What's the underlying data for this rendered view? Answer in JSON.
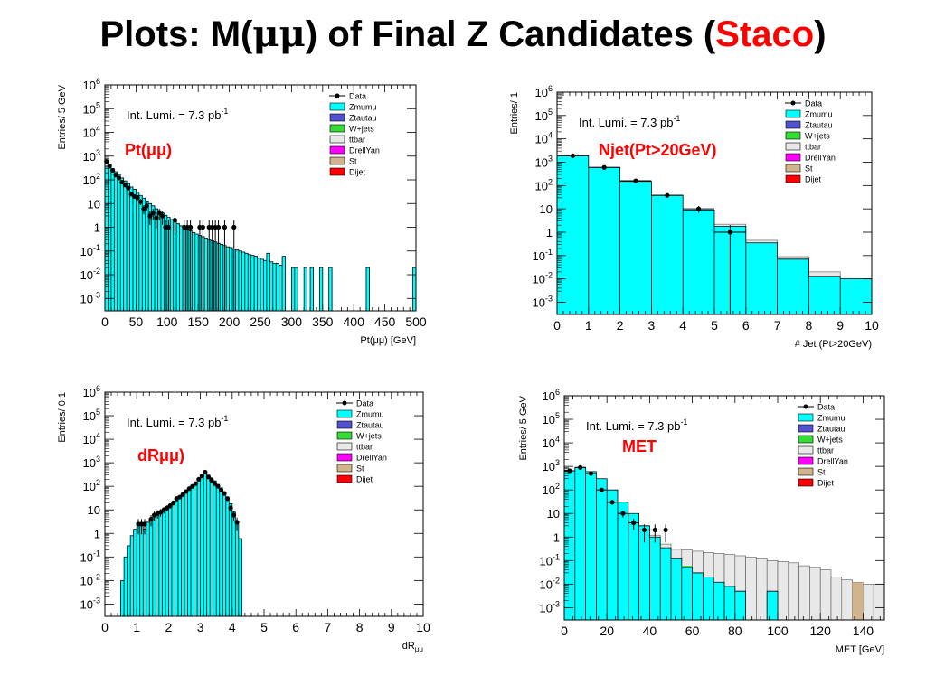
{
  "slide": {
    "title_prefix": "Plots:  M(",
    "mumu": "μμ",
    "title_middle": ") of Final Z Candidates (",
    "title_accent": "Staco",
    "title_suffix": ")",
    "accent_color": "#ff0000"
  },
  "legend_style": {
    "Data": {
      "kind": "marker",
      "color": "#000000"
    },
    "Zmumu": {
      "color": "#00ffff"
    },
    "Ztautau": {
      "color": "#5050d0"
    },
    "W+jets": {
      "color": "#33dd33"
    },
    "ttbar": {
      "color": "#e8e8e8"
    },
    "DrellYan": {
      "color": "#ff00ff"
    },
    "St": {
      "color": "#d2b48c"
    },
    "Dijet": {
      "color": "#ff0000"
    }
  },
  "chart_data": [
    {
      "type": "histogram",
      "label": "Pt(μμ)",
      "annotation": "Int. Lumi. = 7.3 pb",
      "annotation_sup": "-1",
      "xlabel": "Pt(μμ) [GeV]",
      "ylabel": "Entries/ 5 GeV",
      "xlim": [
        0,
        500
      ],
      "ylim": [
        0.0003,
        1000000
      ],
      "y_scale": "log",
      "x_ticks": [
        0,
        50,
        100,
        150,
        200,
        250,
        300,
        350,
        400,
        450,
        500
      ],
      "y_tick_exponents": [
        -3,
        -2,
        -1,
        0,
        1,
        2,
        3,
        4,
        5,
        6
      ],
      "legend": [
        "Data",
        "Zmumu",
        "Ztautau",
        "W+jets",
        "ttbar",
        "DrellYan",
        "St",
        "Dijet"
      ],
      "legend_position": "top-right",
      "bin_width": 5,
      "mc_bins": [
        [
          0,
          350
        ],
        [
          5,
          420
        ],
        [
          10,
          300
        ],
        [
          15,
          220
        ],
        [
          20,
          170
        ],
        [
          25,
          120
        ],
        [
          30,
          90
        ],
        [
          35,
          70
        ],
        [
          40,
          50
        ],
        [
          45,
          40
        ],
        [
          50,
          30
        ],
        [
          55,
          22
        ],
        [
          60,
          17
        ],
        [
          65,
          13
        ],
        [
          70,
          10
        ],
        [
          75,
          8
        ],
        [
          80,
          6
        ],
        [
          85,
          5
        ],
        [
          90,
          4
        ],
        [
          95,
          3.2
        ],
        [
          100,
          2.6
        ],
        [
          105,
          2.1
        ],
        [
          110,
          1.7
        ],
        [
          115,
          1.4
        ],
        [
          120,
          1.15
        ],
        [
          125,
          0.95
        ],
        [
          130,
          0.8
        ],
        [
          135,
          0.7
        ],
        [
          140,
          0.6
        ],
        [
          145,
          0.52
        ],
        [
          150,
          0.45
        ],
        [
          155,
          0.4
        ],
        [
          160,
          0.35
        ],
        [
          165,
          0.3
        ],
        [
          170,
          0.27
        ],
        [
          175,
          0.24
        ],
        [
          180,
          0.21
        ],
        [
          185,
          0.19
        ],
        [
          190,
          0.17
        ],
        [
          195,
          0.15
        ],
        [
          200,
          0.14
        ],
        [
          205,
          0.12
        ],
        [
          210,
          0.11
        ],
        [
          215,
          0.1
        ],
        [
          220,
          0.09
        ],
        [
          225,
          0.08
        ],
        [
          230,
          0.07
        ],
        [
          235,
          0.065
        ],
        [
          240,
          0.06
        ],
        [
          245,
          0.05
        ],
        [
          250,
          0.045
        ],
        [
          255,
          0.04
        ],
        [
          260,
          0.08
        ],
        [
          265,
          0.035
        ],
        [
          270,
          0.03
        ],
        [
          275,
          0.03
        ],
        [
          280,
          0.025
        ],
        [
          285,
          0.06
        ],
        [
          300,
          0.02
        ],
        [
          305,
          0.02
        ],
        [
          320,
          0.02
        ],
        [
          330,
          0.02
        ],
        [
          345,
          0.02
        ],
        [
          360,
          0.02
        ],
        [
          420,
          0.02
        ],
        [
          495,
          0.02
        ]
      ],
      "data_points": [
        [
          2.5,
          600
        ],
        [
          7.5,
          380
        ],
        [
          12.5,
          250
        ],
        [
          17.5,
          160
        ],
        [
          22.5,
          120
        ],
        [
          27.5,
          80
        ],
        [
          32.5,
          60
        ],
        [
          37.5,
          45
        ],
        [
          42.5,
          25
        ],
        [
          47.5,
          20
        ],
        [
          52.5,
          18
        ],
        [
          57.5,
          12
        ],
        [
          62.5,
          6
        ],
        [
          67.5,
          8
        ],
        [
          72.5,
          3
        ],
        [
          77.5,
          4
        ],
        [
          82.5,
          2.5
        ],
        [
          87.5,
          4
        ],
        [
          92.5,
          3
        ],
        [
          97.5,
          1
        ],
        [
          102.5,
          1
        ],
        [
          112.5,
          2
        ],
        [
          127.5,
          1
        ],
        [
          132.5,
          1
        ],
        [
          137.5,
          1
        ],
        [
          152.5,
          1
        ],
        [
          157.5,
          1
        ],
        [
          167.5,
          1
        ],
        [
          172.5,
          1
        ],
        [
          177.5,
          1
        ],
        [
          182.5,
          1
        ],
        [
          192.5,
          1
        ],
        [
          207.5,
          1
        ]
      ]
    },
    {
      "type": "histogram",
      "label": "Njet(Pt>20GeV)",
      "annotation": "Int. Lumi. = 7.3 pb",
      "annotation_sup": "-1",
      "xlabel": "# Jet (Pt>20GeV)",
      "ylabel": "Entries/ 1",
      "xlim": [
        0,
        10
      ],
      "ylim": [
        0.0003,
        1000000
      ],
      "y_scale": "log",
      "x_ticks": [
        0,
        1,
        2,
        3,
        4,
        5,
        6,
        7,
        8,
        9,
        10
      ],
      "y_tick_exponents": [
        -3,
        -2,
        -1,
        0,
        1,
        2,
        3,
        4,
        5,
        6
      ],
      "legend": [
        "Data",
        "Zmumu",
        "Ztautau",
        "W+jets",
        "ttbar",
        "DrellYan",
        "St",
        "Dijet"
      ],
      "legend_position": "top-right",
      "bin_width": 1,
      "mc_bins": [
        [
          0,
          1900
        ],
        [
          1,
          600
        ],
        [
          2,
          150
        ],
        [
          3,
          38
        ],
        [
          4,
          9
        ],
        [
          5,
          1.8
        ],
        [
          6,
          0.35
        ],
        [
          7,
          0.07
        ],
        [
          8,
          0.013
        ],
        [
          9,
          0.01
        ]
      ],
      "ttbar_bins": [
        [
          5,
          2.2
        ],
        [
          6,
          0.45
        ],
        [
          7,
          0.09
        ],
        [
          8,
          0.02
        ],
        [
          9,
          0.01
        ]
      ],
      "st_bins": [
        [
          9,
          0.01
        ]
      ],
      "data_points": [
        [
          0.5,
          1900
        ],
        [
          1.5,
          600
        ],
        [
          2.5,
          160
        ],
        [
          3.5,
          38
        ],
        [
          4.5,
          10
        ],
        [
          5.5,
          1
        ]
      ]
    },
    {
      "type": "histogram",
      "label": "dRμμ)",
      "annotation": "Int. Lumi. = 7.3 pb",
      "annotation_sup": "-1",
      "xlabel": "dR",
      "xlabel_sub": "μμ",
      "ylabel": "Entries/ 0.1",
      "xlim": [
        0,
        10
      ],
      "ylim": [
        0.0003,
        1000000
      ],
      "y_scale": "log",
      "x_ticks": [
        0,
        1,
        2,
        3,
        4,
        5,
        6,
        7,
        8,
        9,
        10
      ],
      "y_tick_exponents": [
        -3,
        -2,
        -1,
        0,
        1,
        2,
        3,
        4,
        5,
        6
      ],
      "legend": [
        "Data",
        "Zmumu",
        "Ztautau",
        "W+jets",
        "ttbar",
        "DrellYan",
        "St",
        "Dijet"
      ],
      "legend_position": "top-right",
      "bin_width": 0.1,
      "mc_bins": [
        [
          0.4,
          0.0003
        ],
        [
          0.5,
          0.01
        ],
        [
          0.6,
          0.1
        ],
        [
          0.7,
          0.3
        ],
        [
          0.8,
          0.8
        ],
        [
          0.9,
          1.5
        ],
        [
          1.0,
          2.5
        ],
        [
          1.1,
          2.5
        ],
        [
          1.2,
          1.5
        ],
        [
          1.3,
          3
        ],
        [
          1.4,
          4
        ],
        [
          1.5,
          5
        ],
        [
          1.6,
          6
        ],
        [
          1.7,
          7
        ],
        [
          1.8,
          9
        ],
        [
          1.9,
          11
        ],
        [
          2.0,
          14
        ],
        [
          2.1,
          18
        ],
        [
          2.2,
          24
        ],
        [
          2.3,
          32
        ],
        [
          2.4,
          42
        ],
        [
          2.5,
          55
        ],
        [
          2.6,
          75
        ],
        [
          2.7,
          100
        ],
        [
          2.8,
          140
        ],
        [
          2.9,
          190
        ],
        [
          3.0,
          260
        ],
        [
          3.1,
          350
        ],
        [
          3.2,
          300
        ],
        [
          3.3,
          230
        ],
        [
          3.4,
          170
        ],
        [
          3.5,
          120
        ],
        [
          3.6,
          85
        ],
        [
          3.7,
          55
        ],
        [
          3.8,
          35
        ],
        [
          3.9,
          18
        ],
        [
          4.0,
          8
        ],
        [
          4.1,
          2.5
        ],
        [
          4.2,
          0.6
        ],
        [
          4.3,
          0.0003
        ]
      ],
      "data_points": [
        [
          1.05,
          2.5
        ],
        [
          1.15,
          2.5
        ],
        [
          1.25,
          2.5
        ],
        [
          1.45,
          4
        ],
        [
          1.55,
          6
        ],
        [
          1.65,
          7
        ],
        [
          1.75,
          8
        ],
        [
          1.85,
          10
        ],
        [
          1.95,
          12
        ],
        [
          2.05,
          15
        ],
        [
          2.15,
          20
        ],
        [
          2.25,
          30
        ],
        [
          2.35,
          35
        ],
        [
          2.45,
          45
        ],
        [
          2.55,
          60
        ],
        [
          2.65,
          80
        ],
        [
          2.75,
          100
        ],
        [
          2.85,
          130
        ],
        [
          2.95,
          200
        ],
        [
          3.05,
          280
        ],
        [
          3.15,
          400
        ],
        [
          3.25,
          250
        ],
        [
          3.35,
          180
        ],
        [
          3.45,
          130
        ],
        [
          3.55,
          100
        ],
        [
          3.65,
          70
        ],
        [
          3.75,
          50
        ],
        [
          3.85,
          30
        ],
        [
          3.95,
          12
        ],
        [
          4.05,
          6
        ],
        [
          4.15,
          3
        ]
      ]
    },
    {
      "type": "histogram",
      "label": "MET",
      "annotation": "Int. Lumi. = 7.3 pb",
      "annotation_sup": "-1",
      "xlabel": "MET [GeV]",
      "ylabel": "Entries/ 5 GeV",
      "xlim": [
        0,
        150
      ],
      "ylim": [
        0.0003,
        1000000
      ],
      "y_scale": "log",
      "x_ticks": [
        0,
        20,
        40,
        60,
        80,
        100,
        120,
        140
      ],
      "y_tick_exponents": [
        -3,
        -2,
        -1,
        0,
        1,
        2,
        3,
        4,
        5,
        6
      ],
      "legend": [
        "Data",
        "Zmumu",
        "Ztautau",
        "W+jets",
        "ttbar",
        "DrellYan",
        "St",
        "Dijet"
      ],
      "legend_position": "top-right",
      "bin_width": 5,
      "mc_bins": [
        [
          0,
          650
        ],
        [
          5,
          900
        ],
        [
          10,
          600
        ],
        [
          15,
          300
        ],
        [
          20,
          100
        ],
        [
          25,
          30
        ],
        [
          30,
          10
        ],
        [
          35,
          3
        ],
        [
          40,
          1
        ],
        [
          45,
          0.35
        ],
        [
          50,
          0.12
        ],
        [
          55,
          0.05
        ],
        [
          60,
          0.03
        ],
        [
          65,
          0.02
        ],
        [
          70,
          0.012
        ],
        [
          75,
          0.008
        ],
        [
          80,
          0.005
        ],
        [
          95,
          0.005
        ]
      ],
      "ttbar_bins": [
        [
          40,
          1.2
        ],
        [
          45,
          0.5
        ],
        [
          50,
          0.3
        ],
        [
          55,
          0.28
        ],
        [
          60,
          0.25
        ],
        [
          65,
          0.22
        ],
        [
          70,
          0.2
        ],
        [
          75,
          0.18
        ],
        [
          80,
          0.16
        ],
        [
          85,
          0.14
        ],
        [
          90,
          0.12
        ],
        [
          95,
          0.1
        ],
        [
          100,
          0.09
        ],
        [
          105,
          0.08
        ],
        [
          110,
          0.06
        ],
        [
          115,
          0.05
        ],
        [
          120,
          0.04
        ],
        [
          125,
          0.02
        ],
        [
          130,
          0.015
        ],
        [
          135,
          0.012
        ],
        [
          140,
          0.01
        ],
        [
          145,
          0.01
        ]
      ],
      "wjets_bins": [
        [
          55,
          0.06
        ]
      ],
      "st_bins": [
        [
          135,
          0.012
        ]
      ],
      "data_points": [
        [
          2.5,
          650
        ],
        [
          7.5,
          900
        ],
        [
          12.5,
          500
        ],
        [
          17.5,
          100
        ],
        [
          22.5,
          30
        ],
        [
          27.5,
          10
        ],
        [
          32.5,
          4
        ],
        [
          37.5,
          2
        ],
        [
          42.5,
          2
        ],
        [
          47.5,
          2
        ]
      ]
    }
  ]
}
